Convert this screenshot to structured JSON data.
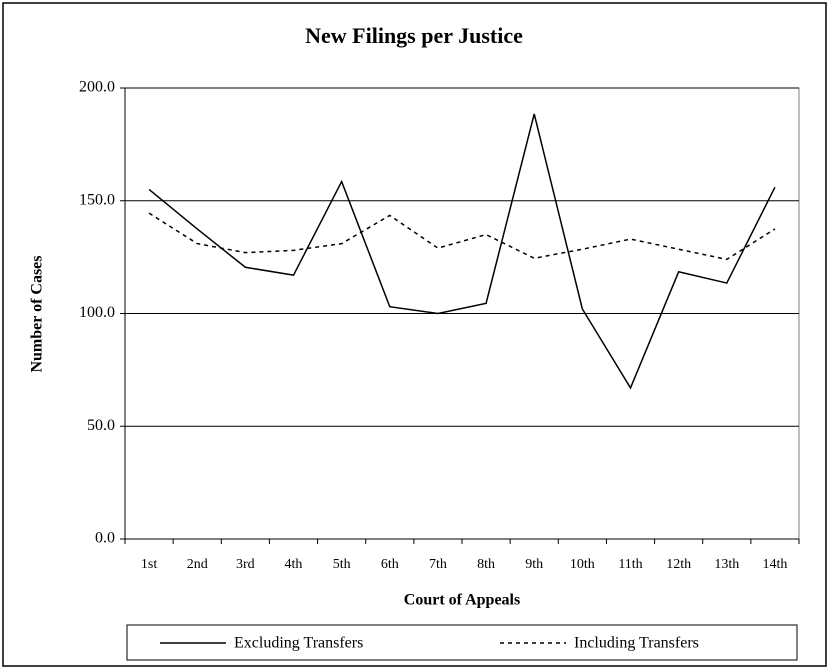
{
  "chart_data": {
    "type": "line",
    "title": "New Filings per Justice",
    "x_label": "Court of Appeals",
    "y_label": "Number of Cases",
    "categories": [
      "1st",
      "2nd",
      "3rd",
      "4th",
      "5th",
      "6th",
      "7th",
      "8th",
      "9th",
      "10th",
      "11th",
      "12th",
      "13th",
      "14th"
    ],
    "series": [
      {
        "name": "Excluding Transfers",
        "color": "#000000",
        "dash": "solid",
        "values": [
          155,
          137.5,
          120.5,
          117,
          158.5,
          103,
          100,
          104.5,
          188.5,
          102,
          67,
          118.5,
          113.5,
          156
        ]
      },
      {
        "name": "Including Transfers",
        "color": "#000000",
        "dash": "dashed",
        "values": [
          144.5,
          131,
          127,
          128,
          131,
          143.5,
          129,
          135,
          124.5,
          128.5,
          133,
          128.5,
          124,
          137.5
        ]
      }
    ],
    "ylim": [
      0,
      200
    ],
    "yticks": [
      {
        "value": 0,
        "label": "0.0"
      },
      {
        "value": 50,
        "label": "50.0"
      },
      {
        "value": 100,
        "label": "100.0"
      },
      {
        "value": 150,
        "label": "150.0"
      },
      {
        "value": 200,
        "label": "200.0"
      }
    ],
    "grid": true,
    "legend": "bottom"
  }
}
